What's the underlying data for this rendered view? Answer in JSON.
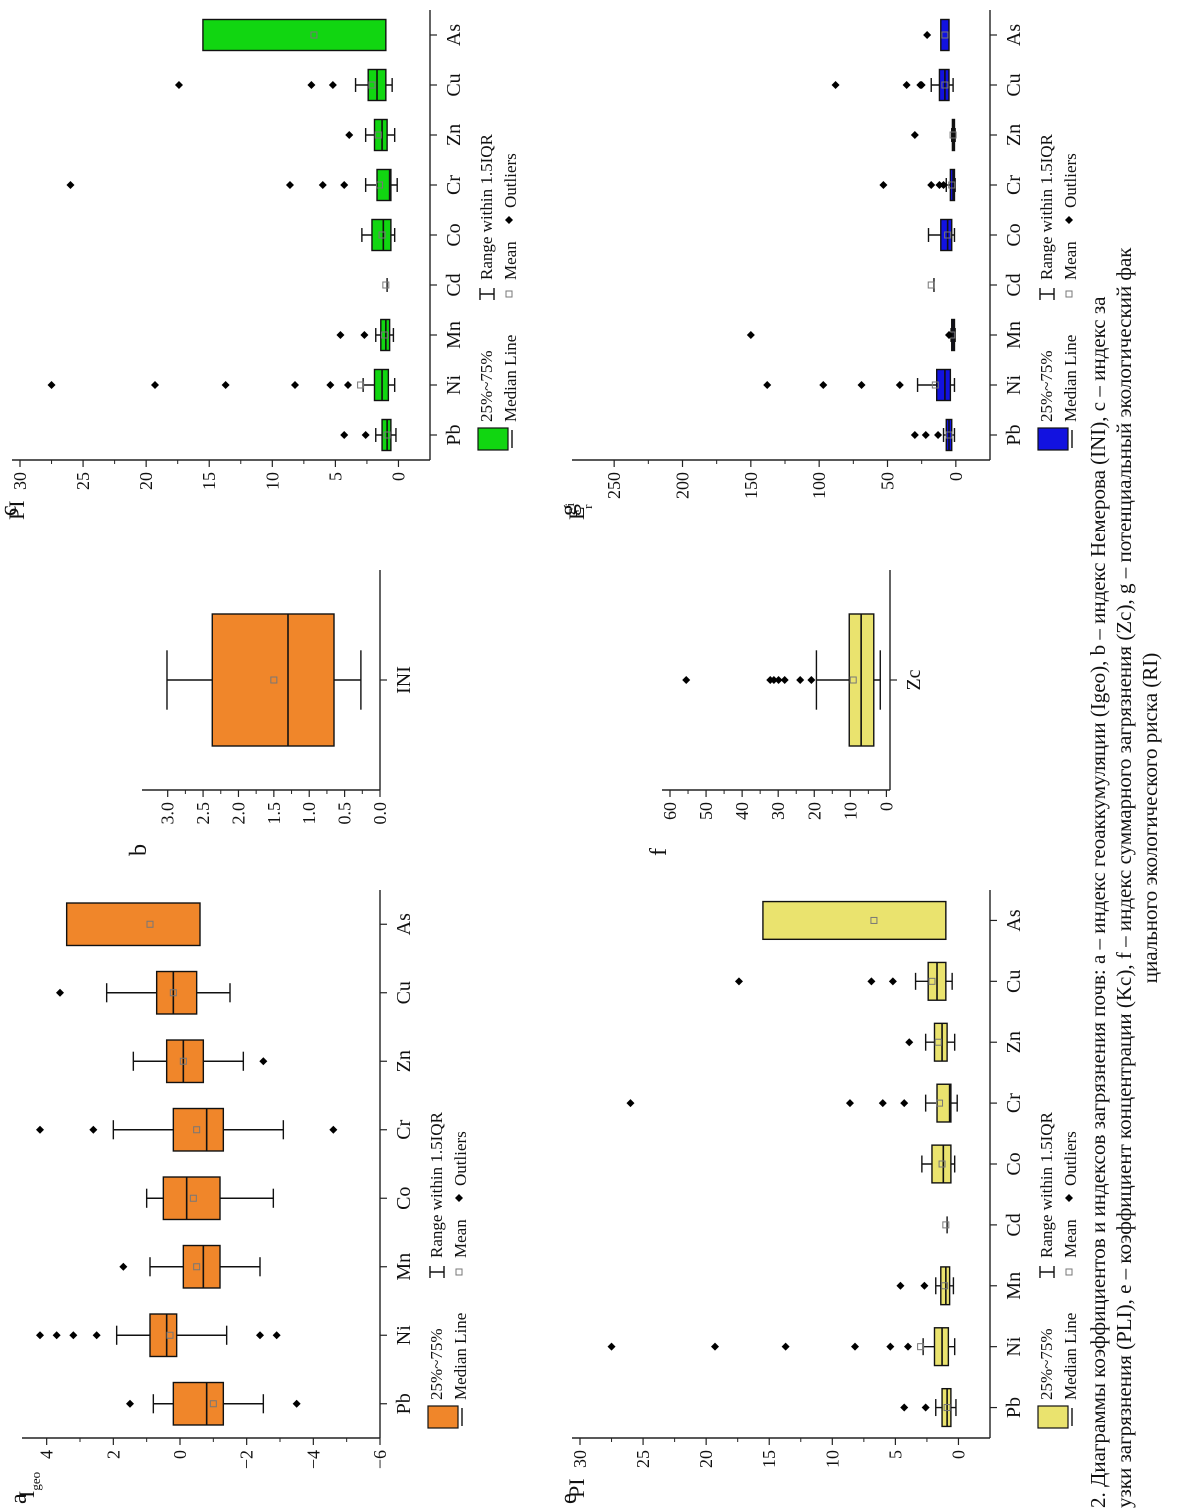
{
  "figure": {
    "caption": {
      "line1": "2. Диаграммы коэффициентов и индексов загрязнения почв: a – индекс геоаккумуляции (Igeo), b – индекс Немерова (INI), c – индекс за",
      "line2": "узки загрязнения (PLI), e – коэффициент концентрации (Kc), f – индекс суммарного загрязнения (Zc), g – потенциальный экологический фак",
      "line3": "циального экологического риска (RI)"
    },
    "legend": {
      "box": "25%~75%",
      "range": "Range within 1.5IQR",
      "median": "Median Line",
      "mean": "Mean",
      "outliers": "Outliers"
    }
  },
  "chart_data": [
    {
      "id": "a",
      "panel_label": "a",
      "type": "box",
      "ylabel": "I",
      "ylabel_sub": "geo",
      "color": "#F0862A",
      "ylim": [
        -6,
        4.5
      ],
      "yticks": [
        -6,
        -4,
        -2,
        0,
        2,
        4
      ],
      "ytick_labels": [
        "−6",
        "−4",
        "−2",
        "0",
        "2",
        "4"
      ],
      "categories": [
        "Pb",
        "Ni",
        "Mn",
        "Co",
        "Cr",
        "Zn",
        "Cu",
        "As"
      ],
      "boxes": [
        {
          "q1": -1.3,
          "median": -0.8,
          "q3": 0.2,
          "wlo": -2.5,
          "whi": 0.8,
          "mean": -1.0,
          "outliers": [
            1.5,
            -3.5
          ]
        },
        {
          "q1": 0.1,
          "median": 0.4,
          "q3": 0.9,
          "wlo": -1.4,
          "whi": 1.9,
          "mean": 0.3,
          "outliers": [
            4.2,
            3.7,
            3.2,
            2.5,
            -2.4,
            -2.9
          ]
        },
        {
          "q1": -1.2,
          "median": -0.7,
          "q3": -0.1,
          "wlo": -2.4,
          "whi": 0.9,
          "mean": -0.5,
          "outliers": [
            1.7
          ]
        },
        {
          "q1": -1.2,
          "median": -0.2,
          "q3": 0.5,
          "wlo": -2.8,
          "whi": 1.0,
          "mean": -0.4,
          "outliers": []
        },
        {
          "q1": -1.3,
          "median": -0.8,
          "q3": 0.2,
          "wlo": -3.1,
          "whi": 2.0,
          "mean": -0.5,
          "outliers": [
            4.2,
            2.6,
            -4.6
          ]
        },
        {
          "q1": -0.7,
          "median": -0.1,
          "q3": 0.4,
          "wlo": -1.9,
          "whi": 1.4,
          "mean": -0.1,
          "outliers": [
            -2.5
          ]
        },
        {
          "q1": -0.5,
          "median": 0.2,
          "q3": 0.7,
          "wlo": -1.5,
          "whi": 2.2,
          "mean": 0.2,
          "outliers": [
            3.6
          ]
        },
        {
          "q1": -0.6,
          "median": null,
          "q3": 3.4,
          "wlo": null,
          "whi": null,
          "mean": 0.9,
          "outliers": []
        }
      ]
    },
    {
      "id": "b",
      "panel_label": "b",
      "type": "box",
      "ylabel": "",
      "color": "#F0862A",
      "ylim": [
        0,
        3.25
      ],
      "yticks": [
        0,
        0.5,
        1.0,
        1.5,
        2.0,
        2.5,
        3.0
      ],
      "ytick_labels": [
        "0.0",
        "0.5",
        "1.0",
        "1.5",
        "2.0",
        "2.5",
        "3.0"
      ],
      "categories": [
        "INI"
      ],
      "boxes": [
        {
          "q1": 0.65,
          "median": 1.3,
          "q3": 2.37,
          "wlo": 0.27,
          "whi": 3.01,
          "mean": 1.5,
          "outliers": []
        }
      ]
    },
    {
      "id": "c",
      "panel_label": "c",
      "type": "box",
      "ylabel": "PI",
      "color": "#11D611",
      "ylim": [
        -2.5,
        30
      ],
      "yticks": [
        0,
        5,
        10,
        15,
        20,
        25,
        30
      ],
      "ytick_labels": [
        "0",
        "5",
        "10",
        "15",
        "20",
        "25",
        "30"
      ],
      "categories": [
        "Pb",
        "Ni",
        "Mn",
        "Cd",
        "Co",
        "Cr",
        "Zn",
        "Cu",
        "As"
      ],
      "boxes": [
        {
          "q1": 0.6,
          "median": 0.9,
          "q3": 1.3,
          "wlo": 0.2,
          "whi": 1.8,
          "mean": 0.9,
          "outliers": [
            4.3,
            2.6
          ]
        },
        {
          "q1": 0.8,
          "median": 1.3,
          "q3": 1.9,
          "wlo": 0.3,
          "whi": 2.8,
          "mean": 3.0,
          "outliers": [
            27.5,
            19.3,
            13.7,
            8.2,
            5.4,
            4.0
          ]
        },
        {
          "q1": 0.7,
          "median": 1.0,
          "q3": 1.4,
          "wlo": 0.4,
          "whi": 1.8,
          "mean": 1.1,
          "outliers": [
            4.6,
            2.7
          ]
        },
        {
          "q1": null,
          "median": null,
          "q3": null,
          "wlo": 0.9,
          "whi": 0.9,
          "mean": 1.0,
          "outliers": [],
          "line_only": true
        },
        {
          "q1": 0.6,
          "median": 1.2,
          "q3": 2.1,
          "wlo": 0.3,
          "whi": 2.9,
          "mean": 1.3,
          "outliers": []
        },
        {
          "q1": 0.6,
          "median": 0.7,
          "q3": 1.7,
          "wlo": 0.1,
          "whi": 2.6,
          "mean": 1.5,
          "outliers": [
            26.0,
            8.6,
            6.0,
            4.3
          ]
        },
        {
          "q1": 0.9,
          "median": 1.3,
          "q3": 1.9,
          "wlo": 0.3,
          "whi": 2.6,
          "mean": 1.6,
          "outliers": [
            3.9
          ]
        },
        {
          "q1": 1.0,
          "median": 1.7,
          "q3": 2.4,
          "wlo": 0.5,
          "whi": 3.4,
          "mean": 2.1,
          "outliers": [
            17.4,
            6.9,
            5.2
          ]
        },
        {
          "q1": 1.0,
          "median": null,
          "q3": 15.5,
          "wlo": null,
          "whi": null,
          "mean": 6.7,
          "outliers": []
        }
      ]
    },
    {
      "id": "e",
      "panel_label": "e",
      "type": "box",
      "ylabel": "PI",
      "color": "#EAE36E",
      "ylim": [
        -2.5,
        30
      ],
      "yticks": [
        0,
        5,
        10,
        15,
        20,
        25,
        30
      ],
      "ytick_labels": [
        "0",
        "5",
        "10",
        "15",
        "20",
        "25",
        "30"
      ],
      "categories": [
        "Pb",
        "Ni",
        "Mn",
        "Cd",
        "Co",
        "Cr",
        "Zn",
        "Cu",
        "As"
      ],
      "boxes": [
        {
          "q1": 0.6,
          "median": 0.9,
          "q3": 1.3,
          "wlo": 0.2,
          "whi": 1.8,
          "mean": 0.9,
          "outliers": [
            4.3,
            2.6
          ]
        },
        {
          "q1": 0.8,
          "median": 1.3,
          "q3": 1.9,
          "wlo": 0.3,
          "whi": 2.8,
          "mean": 3.0,
          "outliers": [
            27.5,
            19.3,
            13.7,
            8.2,
            5.4,
            4.0
          ]
        },
        {
          "q1": 0.7,
          "median": 1.0,
          "q3": 1.4,
          "wlo": 0.4,
          "whi": 1.8,
          "mean": 1.1,
          "outliers": [
            4.6,
            2.7
          ]
        },
        {
          "q1": null,
          "median": null,
          "q3": null,
          "wlo": 0.9,
          "whi": 0.9,
          "mean": 1.0,
          "outliers": [],
          "line_only": true
        },
        {
          "q1": 0.6,
          "median": 1.2,
          "q3": 2.1,
          "wlo": 0.3,
          "whi": 2.9,
          "mean": 1.3,
          "outliers": []
        },
        {
          "q1": 0.6,
          "median": 0.7,
          "q3": 1.7,
          "wlo": 0.1,
          "whi": 2.6,
          "mean": 1.5,
          "outliers": [
            26.0,
            8.6,
            6.0,
            4.3
          ]
        },
        {
          "q1": 0.9,
          "median": 1.3,
          "q3": 1.9,
          "wlo": 0.3,
          "whi": 2.6,
          "mean": 1.6,
          "outliers": [
            3.9
          ]
        },
        {
          "q1": 1.0,
          "median": 1.7,
          "q3": 2.4,
          "wlo": 0.5,
          "whi": 3.4,
          "mean": 2.1,
          "outliers": [
            17.4,
            6.9,
            5.2
          ]
        },
        {
          "q1": 1.0,
          "median": null,
          "q3": 15.5,
          "wlo": null,
          "whi": null,
          "mean": 6.7,
          "outliers": []
        }
      ]
    },
    {
      "id": "f",
      "panel_label": "f",
      "type": "box",
      "ylabel": "",
      "color": "#EAE36E",
      "ylim": [
        -1,
        60
      ],
      "yticks": [
        0,
        10,
        20,
        30,
        40,
        50,
        60
      ],
      "ytick_labels": [
        "0",
        "10",
        "20",
        "30",
        "40",
        "50",
        "60"
      ],
      "categories": [
        "Zc"
      ],
      "boxes": [
        {
          "q1": 3.5,
          "median": 7.0,
          "q3": 10.3,
          "wlo": 1.7,
          "whi": 19.4,
          "mean": 9.2,
          "outliers": [
            55.5,
            32.2,
            31.2,
            29.9,
            28.2,
            23.9,
            20.8
          ]
        }
      ]
    },
    {
      "id": "g",
      "panel_label": "g",
      "type": "box",
      "ylabel": "E",
      "ylabel_sup": "i",
      "ylabel_sub": "r",
      "color": "#1212E0",
      "ylim": [
        -25,
        275
      ],
      "yticks": [
        0,
        50,
        100,
        150,
        200,
        250
      ],
      "ytick_labels": [
        "0",
        "50",
        "100",
        "150",
        "200",
        "250"
      ],
      "categories": [
        "Pb",
        "Ni",
        "Mn",
        "Cd",
        "Co",
        "Cr",
        "Zn",
        "Cu",
        "As"
      ],
      "boxes": [
        {
          "q1": 3,
          "median": 5,
          "q3": 7,
          "wlo": 1,
          "whi": 9,
          "mean": 5,
          "outliers": [
            30,
            22,
            13
          ]
        },
        {
          "q1": 4,
          "median": 8,
          "q3": 14,
          "wlo": 1,
          "whi": 28,
          "mean": 15,
          "outliers": [
            138,
            97,
            69,
            41
          ]
        },
        {
          "q1": 1,
          "median": 2,
          "q3": 3,
          "wlo": 0.5,
          "whi": 3.5,
          "mean": 3,
          "outliers": [
            150,
            5
          ]
        },
        {
          "q1": null,
          "median": null,
          "q3": null,
          "wlo": 16,
          "whi": 16,
          "mean": 18,
          "outliers": [],
          "line_only": true
        },
        {
          "q1": 3,
          "median": 6,
          "q3": 11,
          "wlo": 1,
          "whi": 20,
          "mean": 6,
          "outliers": []
        },
        {
          "q1": 1,
          "median": 2,
          "q3": 4,
          "wlo": 0.5,
          "whi": 7,
          "mean": 3,
          "outliers": [
            53,
            18,
            12,
            9
          ]
        },
        {
          "q1": 1,
          "median": 1.5,
          "q3": 2.5,
          "wlo": 0.5,
          "whi": 3,
          "mean": 2,
          "outliers": [
            30
          ]
        },
        {
          "q1": 5,
          "median": 8,
          "q3": 12,
          "wlo": 2,
          "whi": 18,
          "mean": 8,
          "outliers": [
            88,
            36,
            26,
            25
          ]
        },
        {
          "q1": 5,
          "median": null,
          "q3": 11,
          "wlo": null,
          "whi": null,
          "mean": 8,
          "outliers": [
            21
          ]
        }
      ]
    }
  ]
}
